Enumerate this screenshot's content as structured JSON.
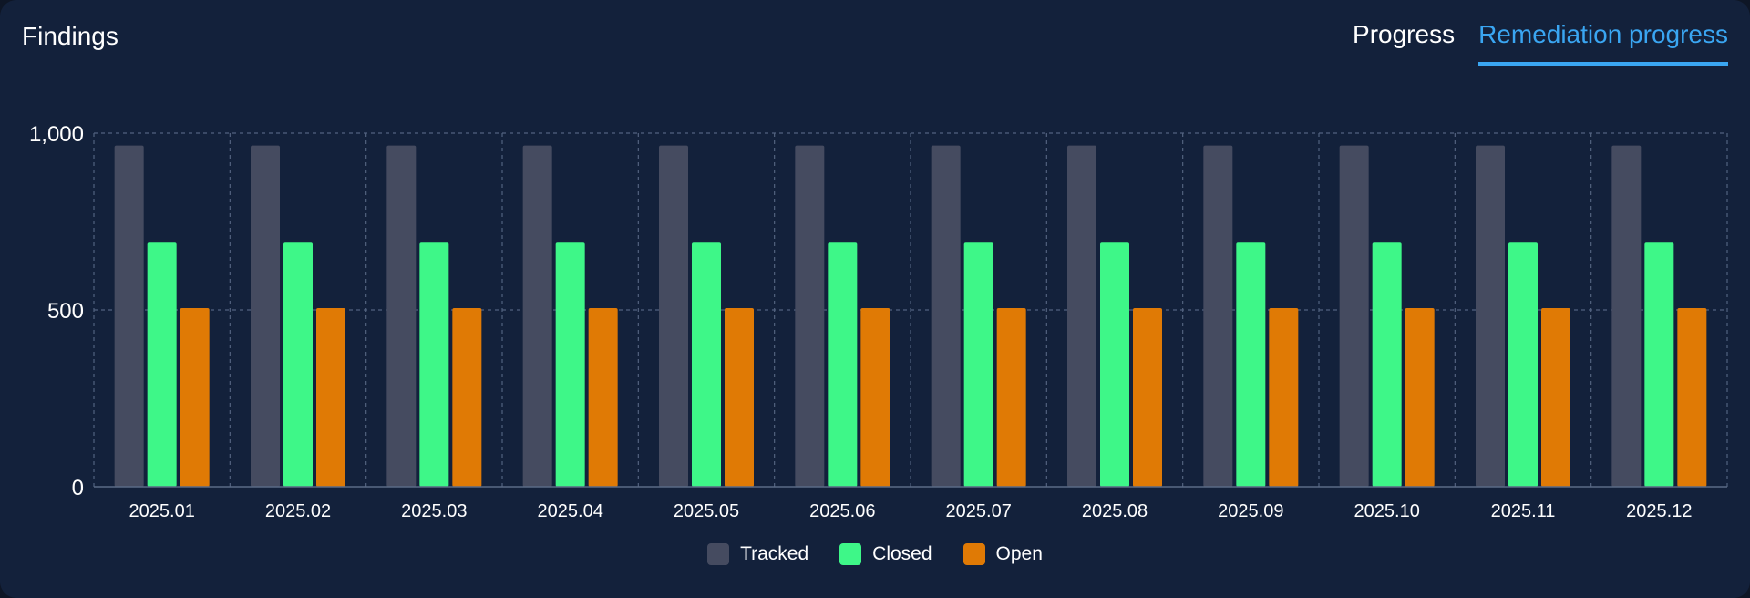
{
  "header": {
    "title": "Findings",
    "tabs": [
      {
        "label": "Progress",
        "active": false
      },
      {
        "label": "Remediation progress",
        "active": true
      }
    ]
  },
  "colors": {
    "background": "#13213b",
    "grid": "#52627f",
    "axis": "#5a6a86",
    "text": "#ffffff",
    "accent": "#3aa6f2"
  },
  "chart_data": {
    "type": "bar",
    "categories": [
      "2025.01",
      "2025.02",
      "2025.03",
      "2025.04",
      "2025.05",
      "2025.06",
      "2025.07",
      "2025.08",
      "2025.09",
      "2025.10",
      "2025.11",
      "2025.12"
    ],
    "series": [
      {
        "name": "Tracked",
        "color": "#454b60",
        "values": [
          965,
          965,
          965,
          965,
          965,
          965,
          965,
          965,
          965,
          965,
          965,
          965
        ]
      },
      {
        "name": "Closed",
        "color": "#3ef788",
        "values": [
          690,
          690,
          690,
          690,
          690,
          690,
          690,
          690,
          690,
          690,
          690,
          690
        ]
      },
      {
        "name": "Open",
        "color": "#e07a05",
        "values": [
          505,
          505,
          505,
          505,
          505,
          505,
          505,
          505,
          505,
          505,
          505,
          505
        ]
      }
    ],
    "yticks": [
      "0",
      "500",
      "1,000"
    ],
    "ytick_values": [
      0,
      500,
      1000
    ],
    "ylim": [
      0,
      1000
    ],
    "grid": true,
    "legend_position": "bottom-center"
  }
}
